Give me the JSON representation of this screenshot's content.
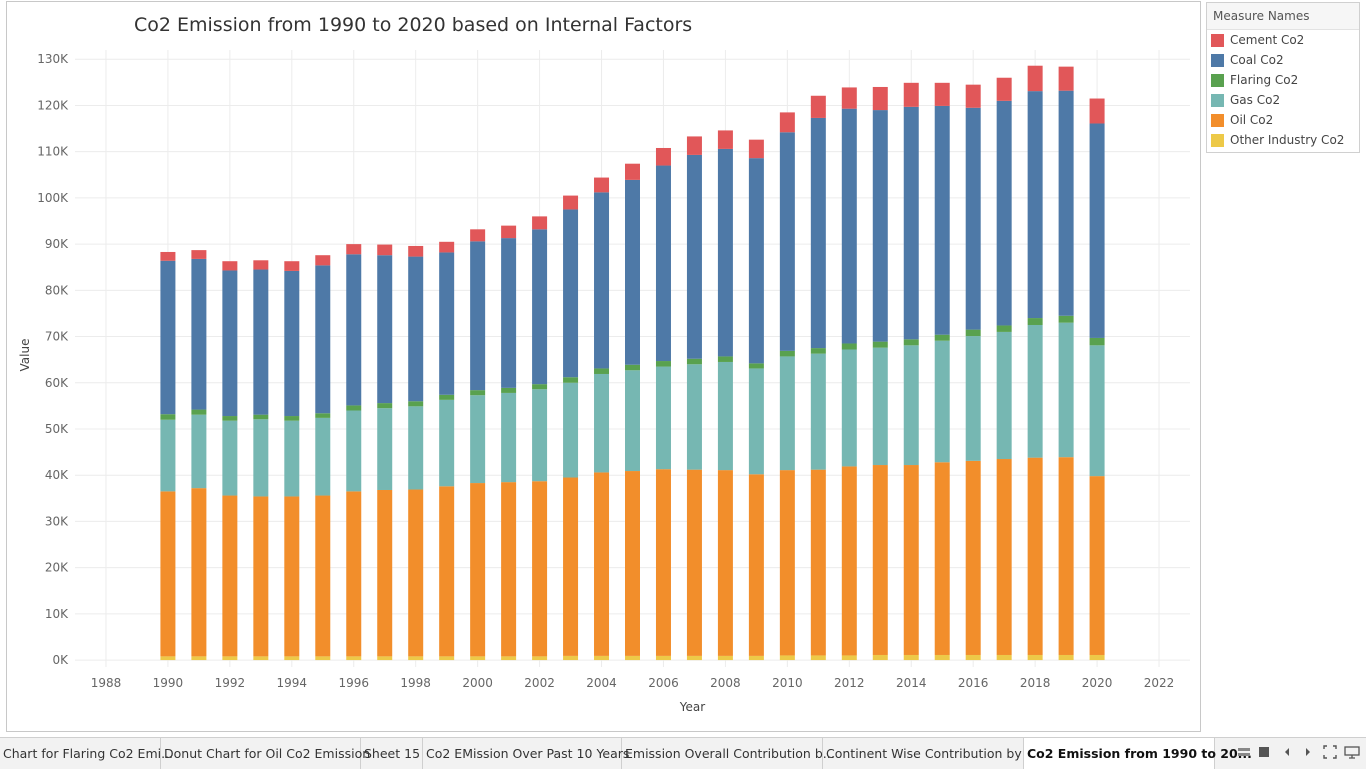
{
  "chart_data": {
    "type": "bar",
    "stacked": true,
    "title": "Co2 Emission from 1990 to 2020 based on Internal Factors",
    "xlabel": "Year",
    "ylabel": "Value",
    "x_ticks": [
      "1988",
      "1990",
      "1992",
      "1994",
      "1996",
      "1998",
      "2000",
      "2002",
      "2004",
      "2006",
      "2008",
      "2010",
      "2012",
      "2014",
      "2016",
      "2018",
      "2020",
      "2022"
    ],
    "y_ticks": [
      "0K",
      "10K",
      "20K",
      "30K",
      "40K",
      "50K",
      "60K",
      "70K",
      "80K",
      "90K",
      "100K",
      "110K",
      "120K",
      "130K"
    ],
    "xlim": [
      1987,
      2023
    ],
    "ylim": [
      -1500,
      132000
    ],
    "legend_title": "Measure Names",
    "legend_position": "right",
    "categories": [
      1990,
      1991,
      1992,
      1993,
      1994,
      1995,
      1996,
      1997,
      1998,
      1999,
      2000,
      2001,
      2002,
      2003,
      2004,
      2005,
      2006,
      2007,
      2008,
      2009,
      2010,
      2011,
      2012,
      2013,
      2014,
      2015,
      2016,
      2017,
      2018,
      2019,
      2020
    ],
    "series": [
      {
        "name": "Other Industry Co2",
        "color": "#edc948",
        "values": [
          800,
          800,
          800,
          800,
          800,
          800,
          800,
          800,
          800,
          800,
          800,
          800,
          800,
          900,
          900,
          900,
          900,
          900,
          900,
          900,
          1000,
          1000,
          1000,
          1100,
          1100,
          1100,
          1100,
          1100,
          1100,
          1100,
          1100
        ]
      },
      {
        "name": "Oil Co2",
        "color": "#f28e2b",
        "values": [
          35700,
          36400,
          34800,
          34600,
          34600,
          34800,
          35700,
          36000,
          36100,
          36800,
          37500,
          37700,
          37900,
          38600,
          39700,
          40000,
          40400,
          40300,
          40200,
          39300,
          40100,
          40200,
          40900,
          41100,
          41100,
          41700,
          42000,
          42400,
          42700,
          42800,
          38700
        ]
      },
      {
        "name": "Gas Co2",
        "color": "#76b7b2",
        "values": [
          15500,
          15900,
          16200,
          16700,
          16400,
          16800,
          17500,
          17700,
          18000,
          18700,
          19000,
          19300,
          19900,
          20500,
          21300,
          21800,
          22200,
          22800,
          23400,
          22900,
          24600,
          25100,
          25300,
          25400,
          25900,
          26300,
          27000,
          27500,
          28700,
          29100,
          28300
        ]
      },
      {
        "name": "Flaring Co2",
        "color": "#59a14f",
        "values": [
          1200,
          1100,
          1000,
          1000,
          1000,
          1000,
          1100,
          1100,
          1100,
          1100,
          1100,
          1100,
          1100,
          1200,
          1200,
          1200,
          1200,
          1200,
          1200,
          1100,
          1200,
          1200,
          1300,
          1300,
          1300,
          1300,
          1400,
          1400,
          1500,
          1500,
          1600
        ]
      },
      {
        "name": "Coal Co2",
        "color": "#4e79a7",
        "values": [
          33200,
          32600,
          31500,
          31400,
          31400,
          32000,
          32700,
          32000,
          31300,
          30800,
          32200,
          32400,
          33500,
          36300,
          38100,
          40000,
          42300,
          44100,
          44900,
          44400,
          47300,
          49800,
          50800,
          50100,
          50300,
          49500,
          48000,
          48600,
          49100,
          48700,
          46400
        ]
      },
      {
        "name": "Cement Co2",
        "color": "#e15759",
        "values": [
          1900,
          1900,
          2000,
          2000,
          2100,
          2200,
          2200,
          2300,
          2300,
          2300,
          2600,
          2700,
          2800,
          3000,
          3200,
          3500,
          3800,
          4000,
          4000,
          4000,
          4300,
          4800,
          4600,
          5000,
          5200,
          5000,
          5000,
          5000,
          5500,
          5200,
          5400
        ]
      }
    ]
  },
  "tabs": [
    {
      "label": "Chart for Flaring Co2 Emi...",
      "active": false
    },
    {
      "label": "Donut Chart for Oil Co2 Emission",
      "active": false
    },
    {
      "label": "Sheet 15",
      "active": false
    },
    {
      "label": "Co2 EMission Over Past 10 Years",
      "active": false
    },
    {
      "label": "Emission Overall Contribution b...",
      "active": false
    },
    {
      "label": "Continent Wise Contribution by I...",
      "active": false
    },
    {
      "label": "Co2 Emission from 1990 to 20...",
      "active": true
    }
  ],
  "nav_icons": [
    "sheet-sorter-icon",
    "filmstrip-icon",
    "previous-tab-icon",
    "next-tab-icon",
    "fit-screen-icon",
    "presentation-mode-icon"
  ]
}
